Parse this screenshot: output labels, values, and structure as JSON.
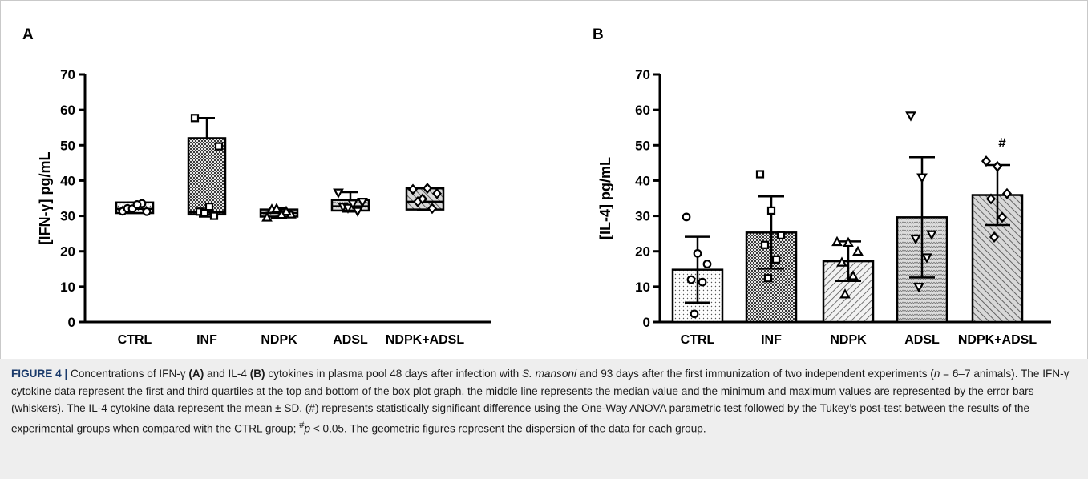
{
  "panels": {
    "a": {
      "letter": "A"
    },
    "b": {
      "letter": "B"
    }
  },
  "chart_data": [
    {
      "type": "box",
      "panel": "A",
      "ylabel": "[IFN-γ] pg/mL",
      "ylim": [
        0,
        70
      ],
      "yticks": [
        0,
        10,
        20,
        30,
        40,
        50,
        60,
        70
      ],
      "categories": [
        "CTRL",
        "INF",
        "NDPK",
        "ADSL",
        "NDPK+ADSL"
      ],
      "boxes": [
        {
          "q1": 30.8,
          "median": 32.0,
          "q3": 33.8,
          "min": 30.8,
          "max": 33.8,
          "marker": "circle",
          "fill": "dots",
          "points": [
            31.3,
            31.2,
            32.1,
            33.5,
            32.0,
            33.2
          ]
        },
        {
          "q1": 30.4,
          "median": 31.0,
          "q3": 52.0,
          "min": 29.8,
          "max": 57.7,
          "marker": "square",
          "fill": "checker",
          "points": [
            57.7,
            49.7,
            31.2,
            30.0,
            30.8,
            32.6
          ]
        },
        {
          "q1": 29.8,
          "median": 30.8,
          "q3": 31.8,
          "min": 29.3,
          "max": 32.3,
          "marker": "triangle",
          "fill": "hatch",
          "points": [
            29.5,
            30.4,
            31.8,
            31.2,
            32.0,
            30.3
          ]
        },
        {
          "q1": 31.5,
          "median": 32.7,
          "q3": 34.5,
          "min": 31.2,
          "max": 36.7,
          "marker": "tri-down",
          "fill": "zigzag",
          "points": [
            36.6,
            34.0,
            32.6,
            31.4,
            32.3,
            33.5
          ]
        },
        {
          "q1": 31.8,
          "median": 34.0,
          "q3": 37.8,
          "min": 31.6,
          "max": 37.8,
          "marker": "diamond",
          "fill": "hatch-back",
          "points": [
            37.5,
            36.3,
            34.0,
            32.1,
            34.8,
            37.8
          ]
        }
      ]
    },
    {
      "type": "bar",
      "panel": "B",
      "ylabel": "[IL-4] pg/mL",
      "ylim": [
        0,
        70
      ],
      "yticks": [
        0,
        10,
        20,
        30,
        40,
        50,
        60,
        70
      ],
      "categories": [
        "CTRL",
        "INF",
        "NDPK",
        "ADSL",
        "NDPK+ADSL"
      ],
      "bars": [
        {
          "mean": 14.8,
          "sd": 9.3,
          "marker": "circle",
          "fill": "dots",
          "points": [
            29.7,
            19.4,
            16.4,
            12.0,
            11.3,
            2.3
          ]
        },
        {
          "mean": 25.3,
          "sd": 10.2,
          "marker": "square",
          "fill": "checker",
          "points": [
            41.8,
            31.5,
            24.5,
            21.8,
            17.7,
            12.4
          ]
        },
        {
          "mean": 17.2,
          "sd": 5.6,
          "marker": "triangle",
          "fill": "hatch",
          "points": [
            22.6,
            22.4,
            19.9,
            16.8,
            13.0,
            7.8
          ]
        },
        {
          "mean": 29.6,
          "sd": 17.0,
          "marker": "tri-down",
          "fill": "zigzag",
          "points": [
            58.4,
            40.9,
            24.8,
            23.6,
            18.3,
            10.0
          ]
        },
        {
          "mean": 35.9,
          "sd": 8.5,
          "marker": "diamond",
          "fill": "hatch-back",
          "points": [
            45.5,
            44.0,
            36.3,
            34.8,
            29.6,
            24.0
          ],
          "annotation": "#"
        }
      ]
    }
  ],
  "caption": {
    "label": "FIGURE 4 |",
    "t1": " Concentrations of IFN-γ ",
    "a": "(A)",
    "t2": " and IL-4 ",
    "b": "(B)",
    "t3": " cytokines in plasma pool 48 days after infection with ",
    "species": "S. mansoni",
    "t4": " and 93 days after the first immunization of two independent experiments (",
    "n": "n",
    "t5": " = 6–7 animals). The IFN-γ cytokine data represent the first and third quartiles at the top and bottom of the box plot graph, the middle line represents the median value and the minimum and maximum values are represented by the error bars (whiskers). The IL-4 cytokine data represent the mean ± SD. (#) represents statistically significant difference using the One-Way ANOVA parametric test followed by the Tukey’s post-test between the results of the experimental groups when compared with the CTRL group; ",
    "sup": "#",
    "p": "p",
    "t6": " < 0.05. The geometric figures represent the dispersion of the data for each group."
  }
}
